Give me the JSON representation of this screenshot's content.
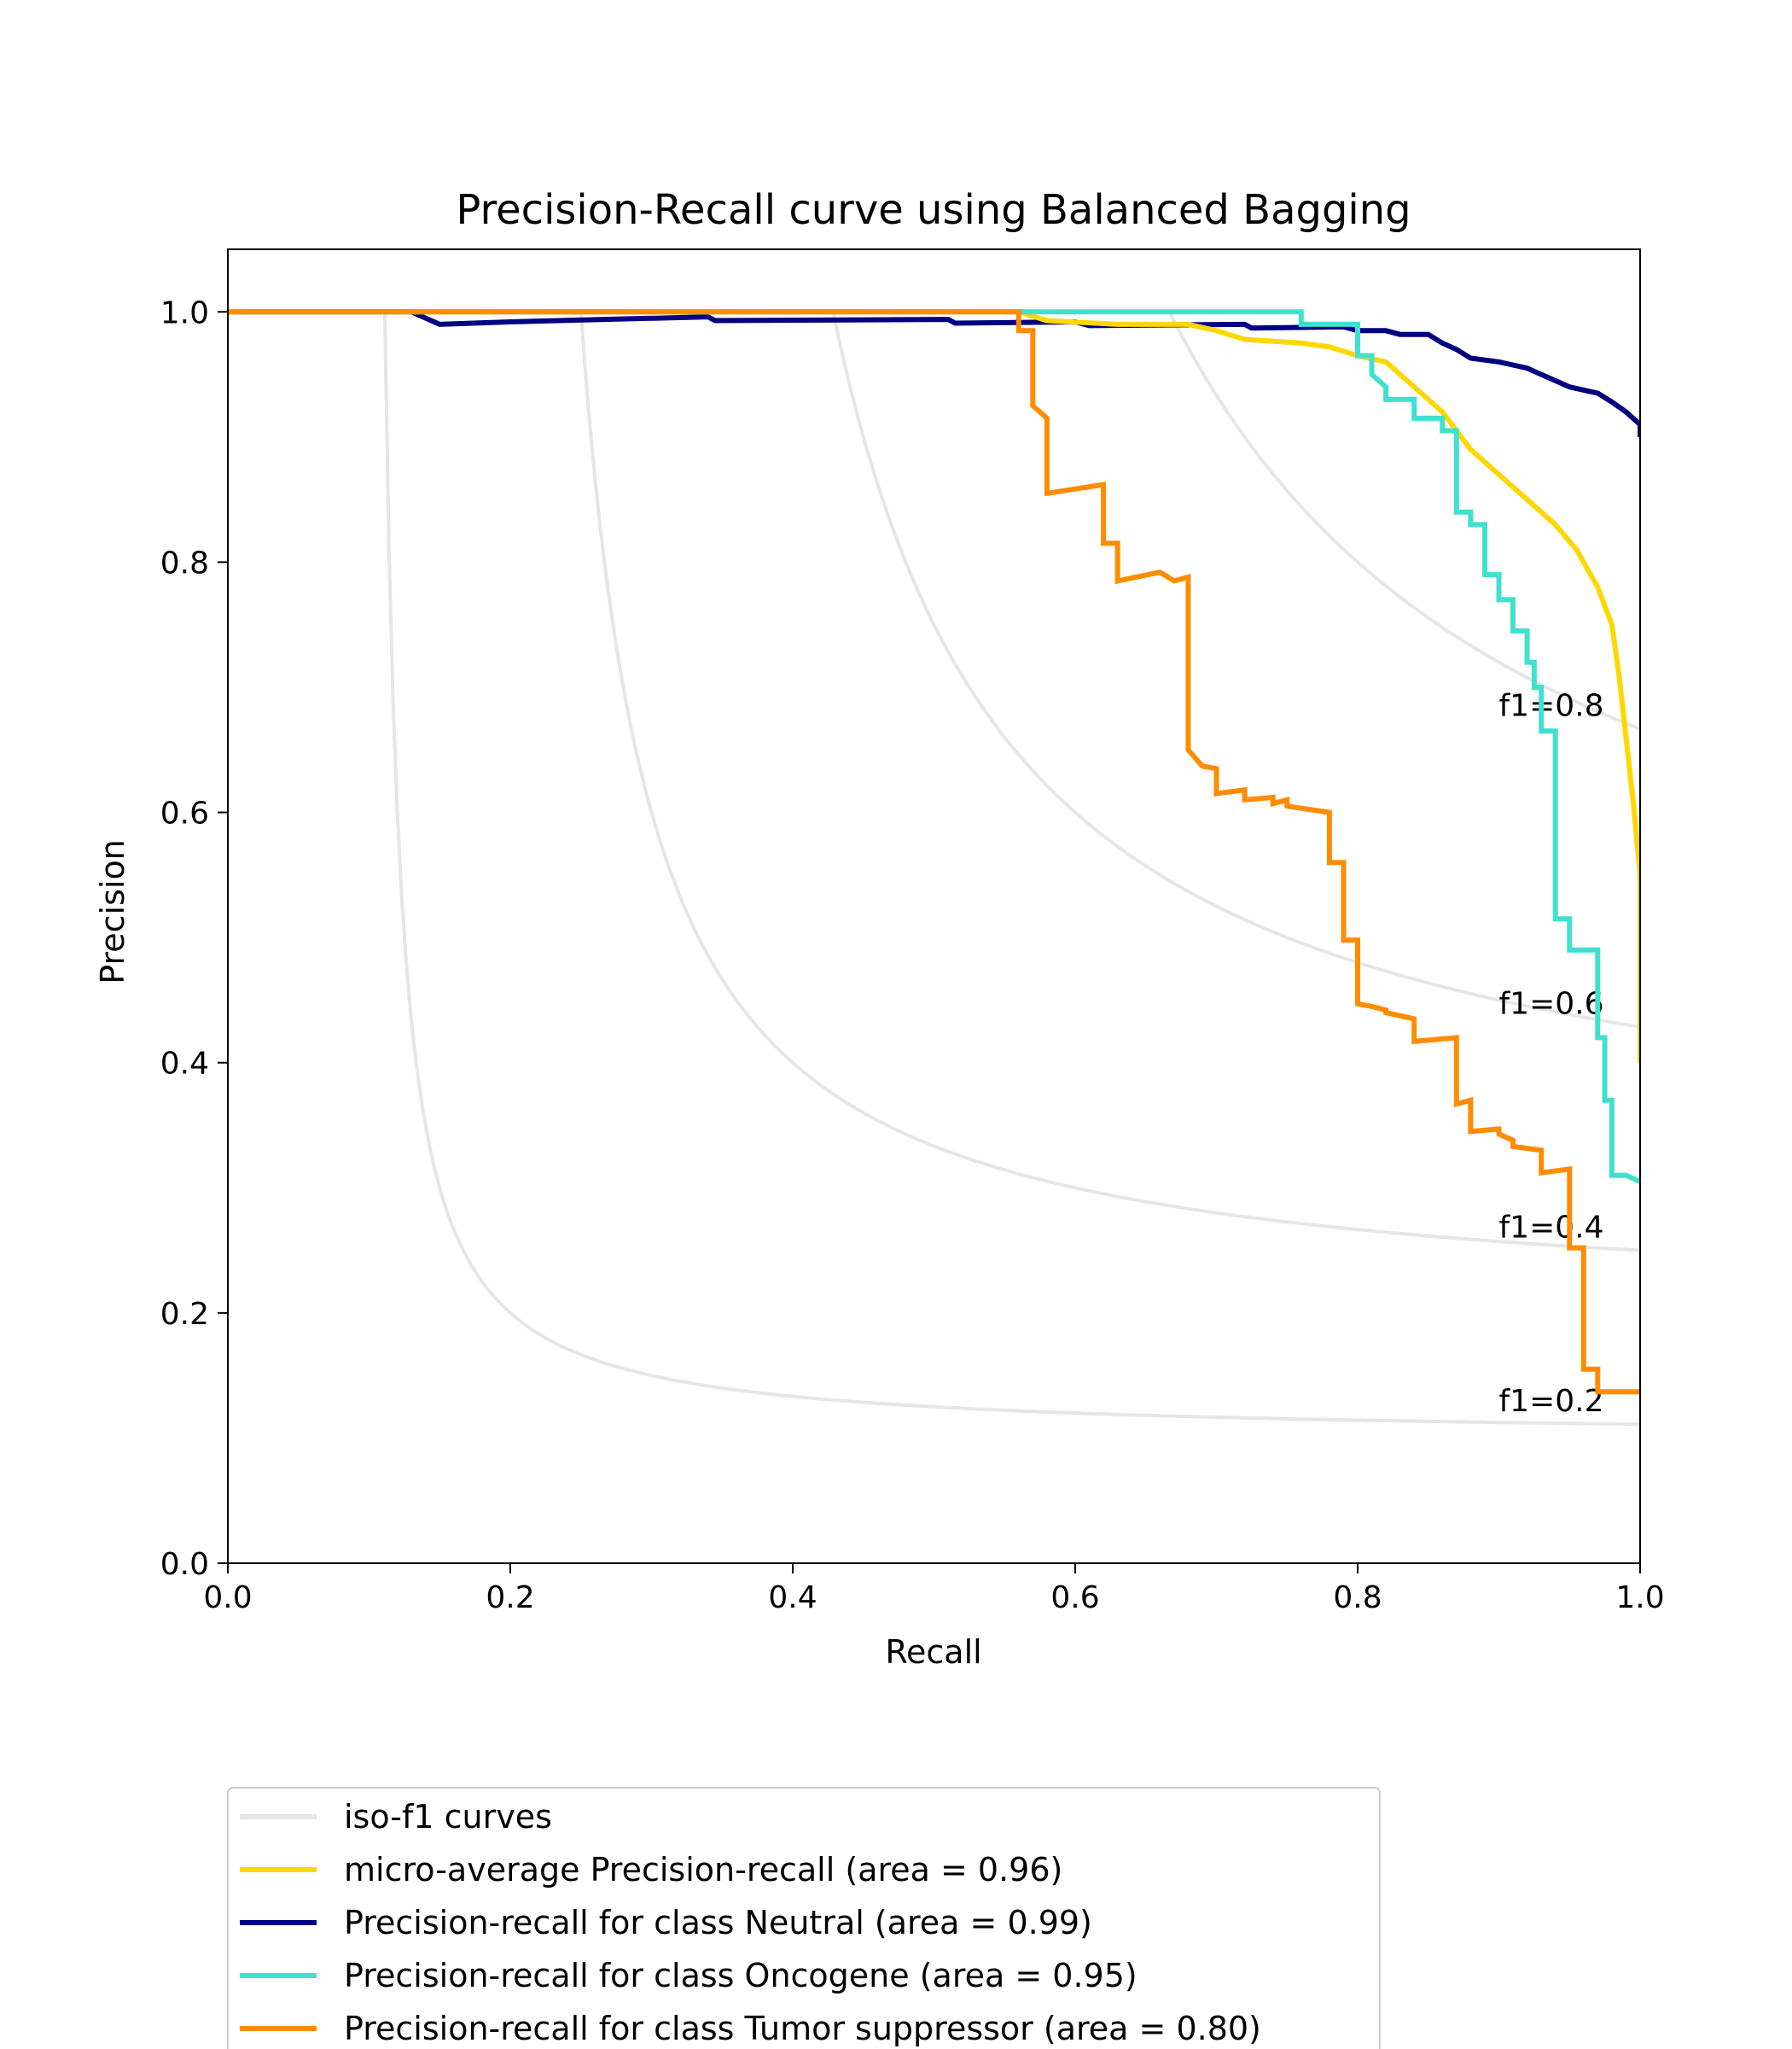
{
  "chart_data": {
    "type": "line",
    "title": "Precision-Recall curve using Balanced Bagging",
    "xlabel": "Recall",
    "ylabel": "Precision",
    "xlim": [
      0.0,
      1.0
    ],
    "ylim": [
      0.0,
      1.05
    ],
    "xticks": [
      "0.0",
      "0.2",
      "0.4",
      "0.6",
      "0.8",
      "1.0"
    ],
    "yticks": [
      "0.0",
      "0.2",
      "0.4",
      "0.6",
      "0.8",
      "1.0"
    ],
    "grid": false,
    "legend_position": "bottom",
    "iso_f1": {
      "label": "iso-f1 curves",
      "color": "#e6e6e6",
      "levels": [
        0.2,
        0.4,
        0.6,
        0.8
      ],
      "labels": [
        "f1=0.2",
        "f1=0.4",
        "f1=0.6",
        "f1=0.8"
      ]
    },
    "series": [
      {
        "name": "micro-average Precision-recall (area = 0.96)",
        "color": "#ffd700",
        "points": [
          [
            0.0,
            1.0
          ],
          [
            0.56,
            1.0
          ],
          [
            0.58,
            0.993
          ],
          [
            0.63,
            0.99
          ],
          [
            0.68,
            0.99
          ],
          [
            0.7,
            0.985
          ],
          [
            0.72,
            0.978
          ],
          [
            0.76,
            0.975
          ],
          [
            0.78,
            0.972
          ],
          [
            0.8,
            0.965
          ],
          [
            0.82,
            0.96
          ],
          [
            0.84,
            0.94
          ],
          [
            0.86,
            0.92
          ],
          [
            0.88,
            0.89
          ],
          [
            0.9,
            0.87
          ],
          [
            0.92,
            0.85
          ],
          [
            0.94,
            0.83
          ],
          [
            0.955,
            0.81
          ],
          [
            0.97,
            0.78
          ],
          [
            0.98,
            0.75
          ],
          [
            0.985,
            0.71
          ],
          [
            0.99,
            0.66
          ],
          [
            0.995,
            0.61
          ],
          [
            1.0,
            0.55
          ],
          [
            1.0,
            0.4
          ]
        ]
      },
      {
        "name": "Precision-recall for class Neutral (area = 0.99)",
        "color": "#000080",
        "points": [
          [
            0.0,
            1.0
          ],
          [
            0.13,
            1.0
          ],
          [
            0.15,
            0.99
          ],
          [
            0.2,
            0.992
          ],
          [
            0.34,
            0.996
          ],
          [
            0.345,
            0.993
          ],
          [
            0.51,
            0.994
          ],
          [
            0.515,
            0.991
          ],
          [
            0.6,
            0.992
          ],
          [
            0.61,
            0.989
          ],
          [
            0.72,
            0.99
          ],
          [
            0.725,
            0.987
          ],
          [
            0.79,
            0.988
          ],
          [
            0.8,
            0.985
          ],
          [
            0.82,
            0.985
          ],
          [
            0.83,
            0.982
          ],
          [
            0.85,
            0.982
          ],
          [
            0.86,
            0.975
          ],
          [
            0.87,
            0.97
          ],
          [
            0.88,
            0.963
          ],
          [
            0.9,
            0.96
          ],
          [
            0.92,
            0.955
          ],
          [
            0.93,
            0.95
          ],
          [
            0.94,
            0.945
          ],
          [
            0.95,
            0.94
          ],
          [
            0.97,
            0.935
          ],
          [
            0.98,
            0.928
          ],
          [
            0.99,
            0.92
          ],
          [
            1.0,
            0.91
          ],
          [
            1.0,
            0.9
          ]
        ]
      },
      {
        "name": "Precision-recall for class Oncogene (area = 0.95)",
        "color": "#40e0d0",
        "points": [
          [
            0.0,
            1.0
          ],
          [
            0.76,
            1.0
          ],
          [
            0.76,
            0.99
          ],
          [
            0.8,
            0.99
          ],
          [
            0.8,
            0.965
          ],
          [
            0.81,
            0.965
          ],
          [
            0.81,
            0.95
          ],
          [
            0.82,
            0.94
          ],
          [
            0.82,
            0.93
          ],
          [
            0.84,
            0.93
          ],
          [
            0.84,
            0.915
          ],
          [
            0.86,
            0.915
          ],
          [
            0.86,
            0.905
          ],
          [
            0.87,
            0.905
          ],
          [
            0.87,
            0.84
          ],
          [
            0.88,
            0.84
          ],
          [
            0.88,
            0.83
          ],
          [
            0.89,
            0.83
          ],
          [
            0.89,
            0.79
          ],
          [
            0.9,
            0.79
          ],
          [
            0.9,
            0.77
          ],
          [
            0.91,
            0.77
          ],
          [
            0.91,
            0.745
          ],
          [
            0.92,
            0.745
          ],
          [
            0.92,
            0.72
          ],
          [
            0.925,
            0.72
          ],
          [
            0.925,
            0.7
          ],
          [
            0.93,
            0.7
          ],
          [
            0.93,
            0.665
          ],
          [
            0.94,
            0.665
          ],
          [
            0.94,
            0.515
          ],
          [
            0.95,
            0.515
          ],
          [
            0.95,
            0.49
          ],
          [
            0.97,
            0.49
          ],
          [
            0.97,
            0.42
          ],
          [
            0.975,
            0.42
          ],
          [
            0.975,
            0.37
          ],
          [
            0.98,
            0.37
          ],
          [
            0.98,
            0.31
          ],
          [
            0.99,
            0.31
          ],
          [
            1.0,
            0.305
          ]
        ]
      },
      {
        "name": "Precision-recall for class Tumor suppressor (area = 0.80)",
        "color": "#ff8c00",
        "points": [
          [
            0.0,
            1.0
          ],
          [
            0.56,
            1.0
          ],
          [
            0.56,
            0.985
          ],
          [
            0.57,
            0.985
          ],
          [
            0.57,
            0.925
          ],
          [
            0.58,
            0.915
          ],
          [
            0.58,
            0.855
          ],
          [
            0.62,
            0.862
          ],
          [
            0.62,
            0.815
          ],
          [
            0.63,
            0.815
          ],
          [
            0.63,
            0.785
          ],
          [
            0.66,
            0.792
          ],
          [
            0.67,
            0.785
          ],
          [
            0.68,
            0.788
          ],
          [
            0.68,
            0.65
          ],
          [
            0.69,
            0.637
          ],
          [
            0.7,
            0.635
          ],
          [
            0.7,
            0.615
          ],
          [
            0.72,
            0.618
          ],
          [
            0.72,
            0.61
          ],
          [
            0.74,
            0.612
          ],
          [
            0.74,
            0.607
          ],
          [
            0.75,
            0.61
          ],
          [
            0.75,
            0.605
          ],
          [
            0.78,
            0.6
          ],
          [
            0.78,
            0.56
          ],
          [
            0.79,
            0.56
          ],
          [
            0.79,
            0.498
          ],
          [
            0.8,
            0.498
          ],
          [
            0.8,
            0.447
          ],
          [
            0.81,
            0.445
          ],
          [
            0.82,
            0.442
          ],
          [
            0.82,
            0.44
          ],
          [
            0.84,
            0.435
          ],
          [
            0.84,
            0.417
          ],
          [
            0.87,
            0.42
          ],
          [
            0.87,
            0.367
          ],
          [
            0.88,
            0.37
          ],
          [
            0.88,
            0.345
          ],
          [
            0.9,
            0.347
          ],
          [
            0.9,
            0.343
          ],
          [
            0.91,
            0.338
          ],
          [
            0.91,
            0.333
          ],
          [
            0.93,
            0.33
          ],
          [
            0.93,
            0.312
          ],
          [
            0.95,
            0.315
          ],
          [
            0.95,
            0.252
          ],
          [
            0.96,
            0.252
          ],
          [
            0.96,
            0.155
          ],
          [
            0.97,
            0.155
          ],
          [
            0.97,
            0.137
          ],
          [
            1.0,
            0.137
          ]
        ]
      }
    ]
  }
}
